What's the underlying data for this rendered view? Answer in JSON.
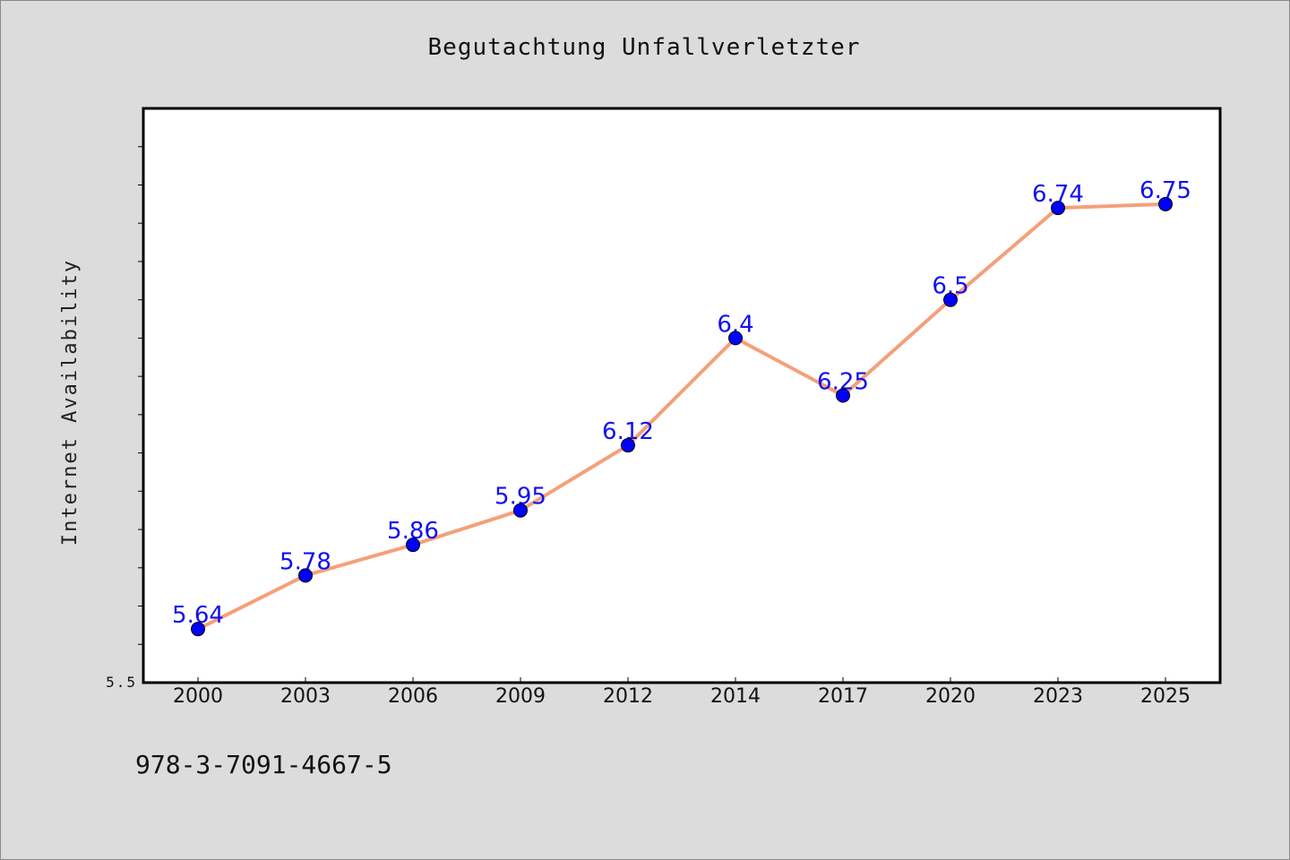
{
  "chart_data": {
    "type": "line",
    "title": "Begutachtung Unfallverletzter",
    "ylabel": "Internet Availability",
    "xlabel": "",
    "categories": [
      "2000",
      "2003",
      "2006",
      "2009",
      "2012",
      "2014",
      "2017",
      "2020",
      "2023",
      "2025"
    ],
    "series": [
      {
        "values": [
          5.64,
          5.78,
          5.86,
          5.95,
          6.12,
          6.4,
          6.25,
          6.5,
          6.74,
          6.75
        ]
      }
    ],
    "data_labels": [
      "5.64",
      "5.78",
      "5.86",
      "5.95",
      "6.12",
      "6.4",
      "6.25",
      "6.5",
      "6.74",
      "6.75"
    ],
    "ylim": [
      5.5,
      7.0
    ],
    "y_tick_label": "5.5",
    "grid": false,
    "line_color": "#f4a07a",
    "marker_color": "#0000ff",
    "label_color": "#1010f0"
  },
  "footnote": "978-3-7091-4667-5"
}
